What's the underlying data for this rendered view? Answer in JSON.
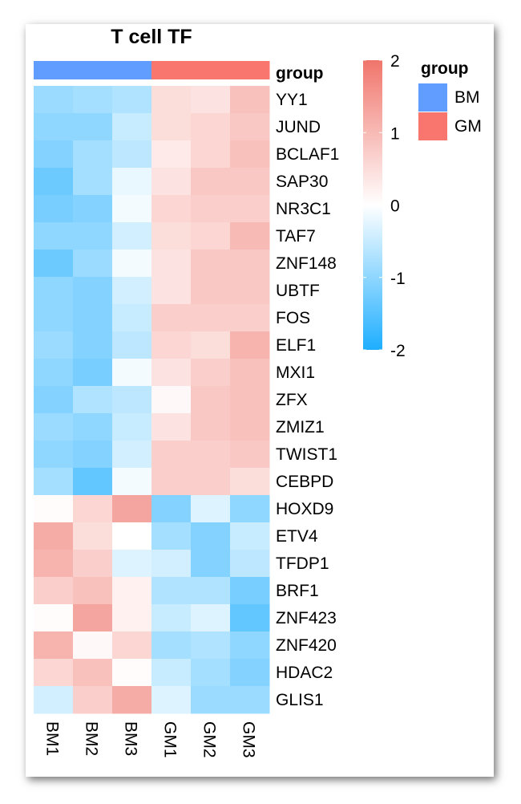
{
  "chart_data": {
    "type": "heatmap",
    "title": "T cell TF",
    "columns": [
      "BM1",
      "BM2",
      "BM3",
      "GM1",
      "GM2",
      "GM3"
    ],
    "rows": [
      "YY1",
      "JUND",
      "BCLAF1",
      "SAP30",
      "NR3C1",
      "TAF7",
      "ZNF148",
      "UBTF",
      "FOS",
      "ELF1",
      "MXI1",
      "ZFX",
      "ZMIZ1",
      "TWIST1",
      "CEBPD",
      "HOXD9",
      "ETV4",
      "TFDP1",
      "BRF1",
      "ZNF423",
      "ZNF420",
      "HDAC2",
      "GLIS1"
    ],
    "values": [
      [
        -0.9,
        -0.8,
        -0.7,
        0.5,
        0.4,
        0.9
      ],
      [
        -1.0,
        -1.0,
        -0.5,
        0.5,
        0.6,
        0.8
      ],
      [
        -1.1,
        -0.8,
        -0.6,
        0.3,
        0.6,
        0.9
      ],
      [
        -1.3,
        -0.8,
        -0.2,
        0.4,
        0.8,
        0.8
      ],
      [
        -1.2,
        -1.1,
        -0.1,
        0.6,
        0.7,
        0.7
      ],
      [
        -1.0,
        -1.0,
        -0.4,
        0.5,
        0.6,
        1.0
      ],
      [
        -1.3,
        -0.9,
        -0.1,
        0.4,
        0.8,
        0.8
      ],
      [
        -1.0,
        -1.1,
        -0.4,
        0.4,
        0.8,
        0.8
      ],
      [
        -1.0,
        -1.1,
        -0.5,
        0.7,
        0.7,
        0.7
      ],
      [
        -0.9,
        -1.1,
        -0.6,
        0.6,
        0.5,
        1.1
      ],
      [
        -1.0,
        -1.2,
        -0.1,
        0.4,
        0.7,
        0.9
      ],
      [
        -1.1,
        -0.7,
        -0.6,
        0.1,
        0.8,
        0.9
      ],
      [
        -0.9,
        -1.0,
        -0.5,
        0.4,
        0.8,
        0.9
      ],
      [
        -1.0,
        -1.1,
        -0.4,
        0.7,
        0.7,
        0.8
      ],
      [
        -0.8,
        -1.4,
        -0.1,
        0.7,
        0.7,
        0.5
      ],
      [
        0.05,
        0.6,
        1.3,
        -1.1,
        -0.3,
        -1.0
      ],
      [
        1.2,
        0.5,
        0.0,
        -0.8,
        -1.1,
        -0.5
      ],
      [
        1.1,
        0.7,
        -0.3,
        -0.4,
        -1.1,
        -0.6
      ],
      [
        0.7,
        0.9,
        0.2,
        -0.7,
        -0.7,
        -1.2
      ],
      [
        0.05,
        1.3,
        0.2,
        -0.5,
        -0.3,
        -1.4
      ],
      [
        1.1,
        0.1,
        0.6,
        -0.8,
        -0.7,
        -1.0
      ],
      [
        0.6,
        0.9,
        0.05,
        -0.5,
        -0.8,
        -1.1
      ],
      [
        -0.4,
        0.7,
        1.2,
        -0.3,
        -0.9,
        -0.9
      ]
    ],
    "group_annotation": {
      "label": "group",
      "groups": [
        {
          "name": "BM",
          "color": "#619CFF",
          "columns": [
            "BM1",
            "BM2",
            "BM3"
          ]
        },
        {
          "name": "GM",
          "color": "#F8766D",
          "columns": [
            "GM1",
            "GM2",
            "GM3"
          ]
        }
      ]
    },
    "color_scale": {
      "min": -2,
      "max": 2,
      "ticks": [
        "2",
        "1",
        "0",
        "-1",
        "-2"
      ],
      "tick_values": [
        2,
        1,
        0,
        -1,
        -2
      ],
      "low_color": "#1EAEFF",
      "mid_color": "#FFFFFF",
      "high_color": "#F0756B"
    },
    "legend": {
      "title": "group",
      "entries": [
        "BM",
        "GM"
      ]
    }
  }
}
